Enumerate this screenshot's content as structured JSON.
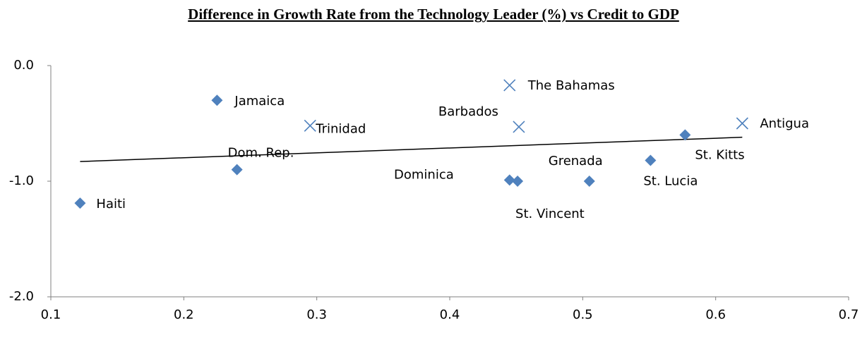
{
  "chart_data": {
    "type": "scatter",
    "title": "Difference in Growth Rate from the Technology Leader (%) vs Credit to GDP",
    "xlim": [
      0.1,
      0.7
    ],
    "xticks": [
      0.1,
      0.2,
      0.3,
      0.4,
      0.5,
      0.6,
      0.7
    ],
    "ylim": [
      -2,
      0
    ],
    "yticks": [
      {
        "value": 0,
        "label": "0.0"
      },
      {
        "value": -1,
        "label": "-1.0"
      },
      {
        "value": -2,
        "label": "-2.0"
      }
    ],
    "series": [
      {
        "marker": "diamond",
        "color": "#4f81bd",
        "x": [
          0.122,
          0.225,
          0.24,
          0.445,
          0.451,
          0.505,
          0.551,
          0.577
        ],
        "y": [
          -1.19,
          -0.3,
          -0.9,
          -0.99,
          -1.0,
          -1.0,
          -0.82,
          -0.6
        ],
        "labels": [
          "Haiti",
          "Jamaica",
          "Dom. Rep.",
          "Dominica",
          "St. Vincent",
          "Grenada",
          "St. Lucia",
          "St. Kitts"
        ]
      },
      {
        "marker": "cross",
        "color": "#4f81bd",
        "x": [
          0.295,
          0.445,
          0.452,
          0.62
        ],
        "y": [
          -0.52,
          -0.17,
          -0.53,
          -0.5
        ],
        "labels": [
          "Trinidad",
          "The Bahamas",
          "Barbados",
          "Antigua"
        ]
      }
    ],
    "trendline": {
      "color": "#000000",
      "x": [
        0.122,
        0.62
      ],
      "y": [
        -0.83,
        -0.62
      ]
    }
  }
}
